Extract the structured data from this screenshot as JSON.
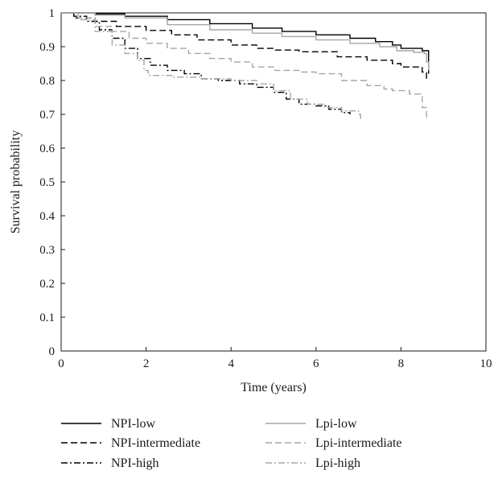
{
  "chart_data": {
    "type": "line",
    "subtype": "kaplan-meier step curves",
    "title": "",
    "xlabel": "Time (years)",
    "ylabel": "Survival probability",
    "xlim": [
      0,
      10
    ],
    "ylim": [
      0,
      1
    ],
    "x_ticks": [
      "0",
      "2",
      "4",
      "6",
      "8",
      "10"
    ],
    "y_ticks": [
      "0",
      "0.1",
      "0.2",
      "0.3",
      "0.4",
      "0.5",
      "0.6",
      "0.7",
      "0.8",
      "0.9",
      "1"
    ],
    "grid": false,
    "legend_position": "bottom",
    "series": [
      {
        "name": "NPI-low",
        "color": "#000000",
        "dash": "solid",
        "points": [
          [
            0,
            1
          ],
          [
            0.8,
            0.997
          ],
          [
            1.5,
            0.99
          ],
          [
            2.5,
            0.98
          ],
          [
            3.5,
            0.968
          ],
          [
            4.5,
            0.955
          ],
          [
            5.2,
            0.945
          ],
          [
            6.0,
            0.935
          ],
          [
            6.8,
            0.925
          ],
          [
            7.4,
            0.915
          ],
          [
            7.8,
            0.905
          ],
          [
            8.0,
            0.895
          ],
          [
            8.5,
            0.888
          ],
          [
            8.65,
            0.888
          ],
          [
            8.65,
            0.82
          ]
        ]
      },
      {
        "name": "NPI-intermediate",
        "color": "#000000",
        "dash": "dashed",
        "points": [
          [
            0,
            1
          ],
          [
            0.3,
            0.985
          ],
          [
            0.8,
            0.975
          ],
          [
            1.3,
            0.96
          ],
          [
            2.0,
            0.948
          ],
          [
            2.6,
            0.935
          ],
          [
            3.2,
            0.92
          ],
          [
            4.0,
            0.905
          ],
          [
            4.6,
            0.895
          ],
          [
            5.0,
            0.89
          ],
          [
            5.6,
            0.885
          ],
          [
            6.3,
            0.885
          ],
          [
            6.5,
            0.87
          ],
          [
            7.2,
            0.86
          ],
          [
            7.8,
            0.85
          ],
          [
            8.0,
            0.84
          ],
          [
            8.4,
            0.84
          ],
          [
            8.5,
            0.825
          ],
          [
            8.6,
            0.8
          ]
        ]
      },
      {
        "name": "NPI-high",
        "color": "#000000",
        "dash": "dashdot",
        "points": [
          [
            0,
            1
          ],
          [
            0.3,
            0.99
          ],
          [
            0.6,
            0.975
          ],
          [
            0.9,
            0.95
          ],
          [
            1.2,
            0.925
          ],
          [
            1.5,
            0.895
          ],
          [
            1.8,
            0.865
          ],
          [
            2.1,
            0.845
          ],
          [
            2.5,
            0.83
          ],
          [
            2.9,
            0.82
          ],
          [
            3.3,
            0.805
          ],
          [
            3.7,
            0.8
          ],
          [
            4.2,
            0.79
          ],
          [
            4.6,
            0.78
          ],
          [
            5.0,
            0.765
          ],
          [
            5.3,
            0.745
          ],
          [
            5.6,
            0.73
          ],
          [
            6.0,
            0.725
          ],
          [
            6.3,
            0.715
          ],
          [
            6.6,
            0.705
          ],
          [
            6.8,
            0.7
          ]
        ]
      },
      {
        "name": "Lpi-low",
        "color": "#a6a6a6",
        "dash": "solid",
        "points": [
          [
            0,
            1
          ],
          [
            0.8,
            0.993
          ],
          [
            1.5,
            0.985
          ],
          [
            2.5,
            0.965
          ],
          [
            3.5,
            0.95
          ],
          [
            4.5,
            0.94
          ],
          [
            5.2,
            0.93
          ],
          [
            6.0,
            0.92
          ],
          [
            6.8,
            0.91
          ],
          [
            7.5,
            0.9
          ],
          [
            7.9,
            0.888
          ],
          [
            8.3,
            0.883
          ],
          [
            8.55,
            0.88
          ],
          [
            8.6,
            0.855
          ],
          [
            8.65,
            0.83
          ]
        ]
      },
      {
        "name": "Lpi-intermediate",
        "color": "#a6a6a6",
        "dash": "dashed",
        "points": [
          [
            0,
            1
          ],
          [
            0.4,
            0.985
          ],
          [
            0.8,
            0.96
          ],
          [
            1.2,
            0.945
          ],
          [
            1.6,
            0.925
          ],
          [
            2.0,
            0.91
          ],
          [
            2.5,
            0.895
          ],
          [
            3.0,
            0.88
          ],
          [
            3.5,
            0.865
          ],
          [
            4.0,
            0.855
          ],
          [
            4.5,
            0.84
          ],
          [
            5.0,
            0.83
          ],
          [
            5.6,
            0.825
          ],
          [
            6.0,
            0.82
          ],
          [
            6.6,
            0.8
          ],
          [
            7.2,
            0.785
          ],
          [
            7.6,
            0.775
          ],
          [
            7.8,
            0.77
          ],
          [
            8.2,
            0.76
          ],
          [
            8.5,
            0.72
          ],
          [
            8.6,
            0.69
          ]
        ]
      },
      {
        "name": "Lpi-high",
        "color": "#a6a6a6",
        "dash": "dashdot",
        "points": [
          [
            0,
            1
          ],
          [
            0.4,
            0.98
          ],
          [
            0.8,
            0.945
          ],
          [
            1.2,
            0.905
          ],
          [
            1.5,
            0.88
          ],
          [
            1.8,
            0.86
          ],
          [
            1.95,
            0.83
          ],
          [
            2.05,
            0.815
          ],
          [
            2.6,
            0.81
          ],
          [
            3.3,
            0.805
          ],
          [
            4.0,
            0.8
          ],
          [
            4.6,
            0.79
          ],
          [
            5.0,
            0.77
          ],
          [
            5.4,
            0.745
          ],
          [
            5.8,
            0.73
          ],
          [
            6.2,
            0.72
          ],
          [
            6.6,
            0.71
          ],
          [
            7.0,
            0.7
          ],
          [
            7.05,
            0.685
          ]
        ]
      }
    ]
  }
}
